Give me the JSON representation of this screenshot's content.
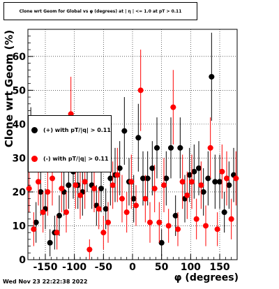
{
  "chart_data": {
    "type": "scatter",
    "title": "Clone wrt Geom for Global vs φ (degrees) at | η | <= 1.0 at pT > 0.11",
    "xlabel": "φ (degrees)",
    "ylabel": "Clone wrt Geom (%)",
    "xlim": [
      -180,
      180
    ],
    "ylim": [
      0,
      68
    ],
    "xticks": [
      -150,
      -100,
      -50,
      0,
      50,
      100,
      150
    ],
    "yticks": [
      0,
      10,
      20,
      30,
      40,
      50,
      60
    ],
    "grid": true,
    "legend_position": "left-middle",
    "series": [
      {
        "name": "(+) with pT/|q| > 0.11",
        "color": "#000000",
        "x": [
          -175,
          -166,
          -158,
          -150,
          -142,
          -134,
          -126,
          -118,
          -110,
          -102,
          -94,
          -86,
          -78,
          -70,
          -62,
          -54,
          -46,
          -38,
          -30,
          -22,
          -14,
          -6,
          2,
          10,
          18,
          26,
          34,
          42,
          50,
          58,
          66,
          74,
          82,
          90,
          98,
          106,
          114,
          122,
          130,
          136,
          142,
          150,
          158,
          166,
          174
        ],
        "y": [
          36,
          11,
          20,
          15,
          5,
          8,
          13,
          20,
          22,
          26,
          22,
          20,
          28,
          22,
          16,
          21,
          15,
          24,
          25,
          27,
          38,
          23,
          18,
          36,
          24,
          24,
          27,
          33,
          5,
          24,
          33,
          13,
          33,
          18,
          25,
          26,
          27,
          20,
          24,
          54,
          23,
          23,
          14,
          22,
          25
        ],
        "err": [
          9,
          6,
          7,
          6,
          4,
          5,
          6,
          7,
          7,
          8,
          7,
          7,
          8,
          7,
          6,
          7,
          6,
          8,
          8,
          8,
          10,
          7,
          7,
          10,
          8,
          8,
          8,
          9,
          4,
          8,
          9,
          6,
          9,
          7,
          8,
          8,
          8,
          7,
          8,
          13,
          8,
          8,
          6,
          7,
          8
        ]
      },
      {
        "name": "(-) with pT/|q| > 0.11",
        "color": "#ff0000",
        "x": [
          -178,
          -170,
          -162,
          -154,
          -146,
          -138,
          -130,
          -122,
          -114,
          -106,
          -98,
          -90,
          -82,
          -74,
          -66,
          -58,
          -50,
          -42,
          -34,
          -26,
          -18,
          -10,
          -2,
          6,
          14,
          22,
          30,
          38,
          46,
          54,
          62,
          70,
          78,
          86,
          94,
          102,
          110,
          118,
          126,
          134,
          146,
          154,
          162,
          170,
          178
        ],
        "y": [
          21,
          9,
          23,
          14,
          20,
          24,
          8,
          21,
          14,
          43,
          22,
          19,
          23,
          3,
          21,
          15,
          8,
          11,
          22,
          25,
          18,
          14,
          23,
          16,
          50,
          18,
          11,
          21,
          11,
          22,
          10,
          45,
          9,
          23,
          19,
          23,
          12,
          22,
          10,
          33,
          9,
          26,
          24,
          12,
          24
        ],
        "err": [
          7,
          5,
          7,
          6,
          7,
          8,
          5,
          7,
          6,
          11,
          7,
          7,
          8,
          3,
          7,
          6,
          5,
          6,
          7,
          8,
          7,
          6,
          8,
          6,
          12,
          7,
          6,
          7,
          6,
          8,
          5,
          11,
          5,
          8,
          7,
          8,
          6,
          7,
          6,
          9,
          5,
          8,
          8,
          6,
          8
        ]
      }
    ]
  },
  "footer": {
    "timestamp": "Wed Nov 23 22:22:38 2022"
  }
}
